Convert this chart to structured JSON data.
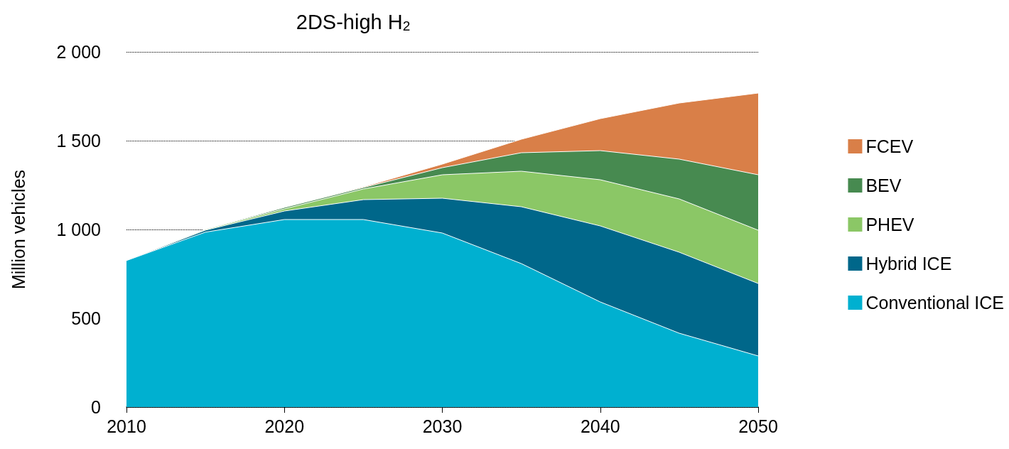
{
  "chart_data": {
    "type": "area",
    "stacked": true,
    "title": "2DS-high H$_{2}$",
    "ylabel": "Million vehicles",
    "x": [
      2010,
      2015,
      2020,
      2025,
      2030,
      2035,
      2040,
      2045,
      2050
    ],
    "series": [
      {
        "name": "Conventional ICE",
        "color": "#00b0d0",
        "values": [
          825,
          985,
          1056,
          1056,
          980,
          808,
          592,
          416,
          288
        ]
      },
      {
        "name": "Hybrid ICE",
        "color": "#00678a",
        "values": [
          0,
          11,
          48,
          112,
          196,
          320,
          428,
          456,
          408
        ]
      },
      {
        "name": "PHEV",
        "color": "#8bc766",
        "values": [
          0,
          4,
          12,
          60,
          132,
          200,
          260,
          300,
          300
        ]
      },
      {
        "name": "BEV",
        "color": "#478a50",
        "values": [
          0,
          1,
          8,
          8,
          40,
          104,
          164,
          224,
          312
        ]
      },
      {
        "name": "FCEV",
        "color": "#d97f48",
        "values": [
          0,
          0,
          0,
          4,
          20,
          76,
          180,
          316,
          460
        ]
      }
    ],
    "xlim": [
      2010,
      2050
    ],
    "xticks": [
      2010,
      2020,
      2030,
      2040,
      2050
    ],
    "ylim": [
      0,
      2000
    ],
    "yticks": [
      0,
      500,
      {
        "value": 1000,
        "label": "1 000"
      },
      {
        "value": 1500,
        "label": "1 500"
      },
      {
        "value": 2000,
        "label": "2 000"
      }
    ],
    "grid": "y",
    "legend": "right"
  }
}
